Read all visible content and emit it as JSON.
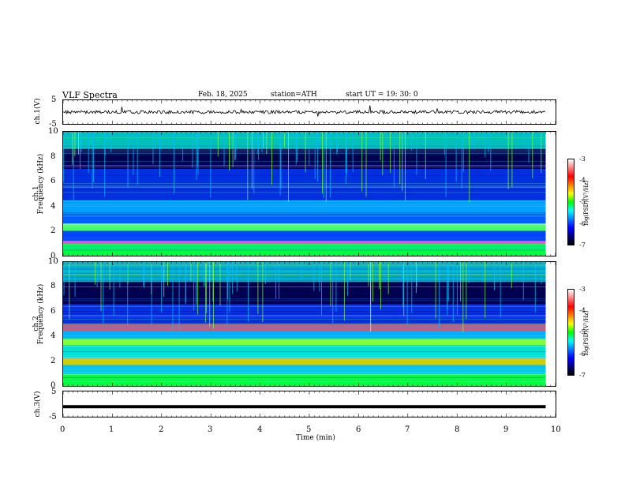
{
  "header": {
    "title": "VLF  Spectra",
    "date": "Feb. 18, 2025",
    "station": "station=ATH",
    "start": "start  UT  =    19: 30: 0"
  },
  "panels": {
    "ch1_wave": {
      "ylabel": "ch.1(V)",
      "ytick_top": "5",
      "ytick_bottom": "-5"
    },
    "ch1_spec": {
      "ylabel_line1": "ch.1",
      "ylabel_line2": "Frequency  (kHz)",
      "yticks": [
        "0",
        "2",
        "4",
        "6",
        "8",
        "10"
      ]
    },
    "ch2_spec": {
      "ylabel_line1": "ch.2",
      "ylabel_line2": "Frequency  (kHz)",
      "yticks": [
        "0",
        "2",
        "4",
        "6",
        "8",
        "10"
      ]
    },
    "ch3_wave": {
      "ylabel": "ch.3(V)",
      "ytick_top": "5",
      "ytick_bottom": "-5"
    }
  },
  "colorbar": {
    "label": "log(PSD)(V²/Hz)",
    "ticks": [
      "-3",
      "-4",
      "-5",
      "-6",
      "-7"
    ],
    "colors": [
      "#ffffff",
      "#ff8080",
      "#ff0000",
      "#ff8000",
      "#ffff00",
      "#00ff00",
      "#00ffff",
      "#0080ff",
      "#0000ff",
      "#000080",
      "#000000"
    ]
  },
  "xaxis": {
    "label": "Time  (min)",
    "ticks": [
      "0",
      "1",
      "2",
      "3",
      "4",
      "5",
      "6",
      "7",
      "8",
      "9",
      "10"
    ]
  },
  "chart_data": {
    "type": "heatmap",
    "title": "VLF  Spectra",
    "xlabel": "Time  (min)",
    "xlim": [
      0,
      10
    ],
    "data_end_min": 9.8,
    "panels": [
      {
        "name": "ch.1(V)",
        "kind": "waveform",
        "ylim": [
          -5,
          5
        ],
        "level_V": 0
      },
      {
        "name": "ch.1",
        "kind": "spectrogram",
        "ylabel": "Frequency  (kHz)",
        "ylim": [
          0,
          10
        ],
        "bands_kHz": [
          {
            "f": [
              0,
              1.0
            ],
            "color": "#00ff40"
          },
          {
            "f": [
              1.0,
              1.2
            ],
            "color": "#ff40ff"
          },
          {
            "f": [
              1.2,
              2.0
            ],
            "color": "#0044ff"
          },
          {
            "f": [
              2.0,
              2.6
            ],
            "color": "#40ff60"
          },
          {
            "f": [
              2.6,
              3.5
            ],
            "color": "#0060ff"
          },
          {
            "f": [
              3.5,
              4.5
            ],
            "color": "#00a0ff"
          },
          {
            "f": [
              4.5,
              7.0
            ],
            "color": "#0030e0"
          },
          {
            "f": [
              7.0,
              8.6
            ],
            "color": "#000050"
          },
          {
            "f": [
              8.6,
              10.0
            ],
            "color": "#00c0c0"
          }
        ]
      },
      {
        "name": "ch.2",
        "kind": "spectrogram",
        "ylabel": "Frequency  (kHz)",
        "ylim": [
          0,
          10
        ],
        "bands_kHz": [
          {
            "f": [
              0,
              1.0
            ],
            "color": "#00ff40"
          },
          {
            "f": [
              1.0,
              1.7
            ],
            "color": "#00c0ff"
          },
          {
            "f": [
              1.7,
              2.3
            ],
            "color": "#d0d000"
          },
          {
            "f": [
              2.3,
              3.3
            ],
            "color": "#00e0d0"
          },
          {
            "f": [
              3.3,
              3.8
            ],
            "color": "#80ff40"
          },
          {
            "f": [
              3.8,
              4.4
            ],
            "color": "#00b0ff"
          },
          {
            "f": [
              4.4,
              5.0
            ],
            "color": "#c06080"
          },
          {
            "f": [
              5.0,
              6.6
            ],
            "color": "#0030e0"
          },
          {
            "f": [
              6.6,
              8.4
            ],
            "color": "#000050"
          },
          {
            "f": [
              8.4,
              10.0
            ],
            "color": "#00b0d0"
          }
        ]
      },
      {
        "name": "ch.3(V)",
        "kind": "waveform",
        "ylim": [
          -5,
          5
        ],
        "level_V": -1
      }
    ],
    "colorbar": {
      "label": "log(PSD)(V²/Hz)",
      "range": [
        -7,
        -3
      ]
    }
  }
}
